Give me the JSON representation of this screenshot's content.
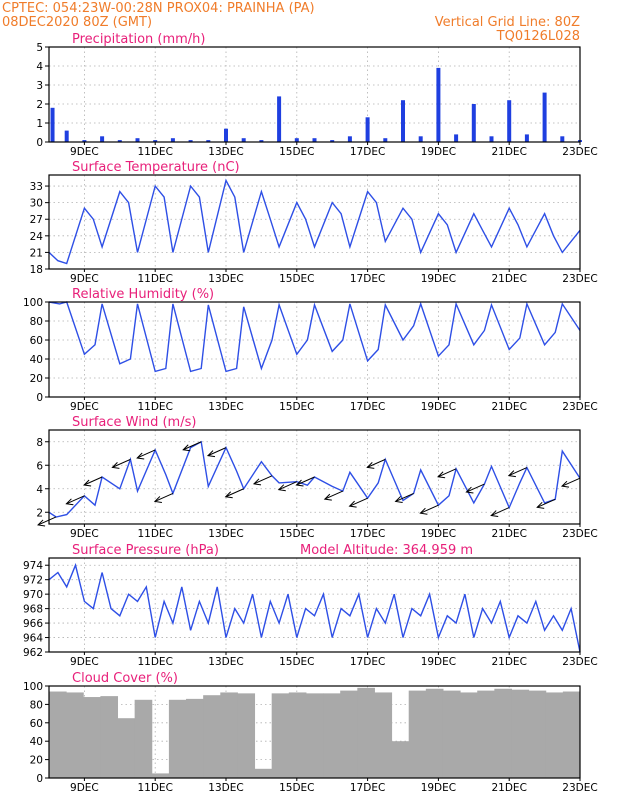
{
  "header": {
    "left1": "CPTEC:    054:23W-00:28N   PROX04: PRAINHA (PA)",
    "left2": "08DEC2020 80Z (GMT)",
    "right1": "Vertical Grid Line: 80Z",
    "right2": "TQ0126L028"
  },
  "colors": {
    "header": "#f07c2a",
    "title": "#e8207a",
    "series": "#2e4fe6",
    "bars": "#1f3fe0",
    "cloud": "#a9a9a9"
  },
  "x_axis": {
    "ticks": [
      "9DEC",
      "11DEC",
      "13DEC",
      "15DEC",
      "17DEC",
      "19DEC",
      "21DEC",
      "23DEC"
    ]
  },
  "panels": [
    {
      "id": "precip",
      "title": "Precipitation (mm/h)",
      "yticks": [
        "0",
        "1",
        "2",
        "3",
        "4",
        "5"
      ]
    },
    {
      "id": "temp",
      "title": "Surface Temperature (nC)",
      "yticks": [
        "18",
        "21",
        "24",
        "27",
        "30",
        "33"
      ]
    },
    {
      "id": "rh",
      "title": "Relative Humidity (%)",
      "yticks": [
        "0",
        "20",
        "40",
        "60",
        "80",
        "100"
      ]
    },
    {
      "id": "wind",
      "title": "Surface Wind (m/s)",
      "yticks": [
        "2",
        "4",
        "6",
        "8"
      ]
    },
    {
      "id": "pres",
      "title": "Surface Pressure (hPa)",
      "extra": "Model Altitude: 364.959 m",
      "yticks": [
        "962",
        "964",
        "966",
        "968",
        "970",
        "972",
        "974"
      ]
    },
    {
      "id": "cloud",
      "title": "Cloud Cover (%)",
      "yticks": [
        "0",
        "20",
        "40",
        "60",
        "80",
        "100"
      ]
    }
  ],
  "chart_data": [
    {
      "type": "bar",
      "title": "Precipitation (mm/h)",
      "ylim": [
        0,
        5
      ],
      "x": [
        "8.1",
        "8.5",
        "9.0",
        "9.5",
        "10.0",
        "10.5",
        "11.0",
        "11.5",
        "12.0",
        "12.5",
        "13.0",
        "13.5",
        "14.0",
        "14.5",
        "15.0",
        "15.5",
        "16.0",
        "16.5",
        "17.0",
        "17.5",
        "18.0",
        "18.5",
        "19.0",
        "19.5",
        "20.0",
        "20.5",
        "21.0",
        "21.5",
        "22.0",
        "22.5",
        "23.0"
      ],
      "values": [
        1.8,
        0.6,
        0.1,
        0.3,
        0.1,
        0.2,
        0.1,
        0.2,
        0.1,
        0.1,
        0.7,
        0.2,
        0.1,
        2.4,
        0.2,
        0.2,
        0.1,
        0.3,
        1.3,
        0.2,
        2.2,
        0.3,
        3.9,
        0.4,
        2.0,
        0.3,
        2.2,
        0.4,
        2.6,
        0.3,
        0.1
      ]
    },
    {
      "type": "line",
      "title": "Surface Temperature (nC)",
      "ylim": [
        18,
        35
      ],
      "x": [
        8.0,
        8.25,
        8.5,
        9.0,
        9.25,
        9.5,
        10.0,
        10.25,
        10.5,
        11.0,
        11.25,
        11.5,
        12.0,
        12.25,
        12.5,
        13.0,
        13.25,
        13.5,
        14.0,
        14.25,
        14.5,
        15.0,
        15.25,
        15.5,
        16.0,
        16.25,
        16.5,
        17.0,
        17.25,
        17.5,
        18.0,
        18.25,
        18.5,
        19.0,
        19.25,
        19.5,
        20.0,
        20.25,
        20.5,
        21.0,
        21.25,
        21.5,
        22.0,
        22.25,
        22.5,
        23.0
      ],
      "values": [
        21,
        19.5,
        19,
        29,
        27,
        22,
        32,
        30,
        21,
        33,
        31,
        21,
        33,
        31,
        21,
        34,
        31,
        21,
        32,
        27,
        22,
        30,
        27,
        22,
        30,
        28,
        22,
        32,
        30,
        23,
        29,
        27,
        21,
        28,
        26,
        21,
        28,
        25,
        22,
        29,
        26,
        22,
        28,
        24,
        21,
        25
      ]
    },
    {
      "type": "line",
      "title": "Relative Humidity (%)",
      "ylim": [
        0,
        100
      ],
      "x": [
        8.0,
        8.3,
        8.5,
        9.0,
        9.3,
        9.5,
        10.0,
        10.3,
        10.5,
        11.0,
        11.3,
        11.5,
        12.0,
        12.3,
        12.5,
        13.0,
        13.3,
        13.5,
        14.0,
        14.3,
        14.5,
        15.0,
        15.3,
        15.5,
        16.0,
        16.3,
        16.5,
        17.0,
        17.3,
        17.5,
        18.0,
        18.3,
        18.5,
        19.0,
        19.3,
        19.5,
        20.0,
        20.3,
        20.5,
        21.0,
        21.3,
        21.5,
        22.0,
        22.3,
        22.5,
        23.0
      ],
      "values": [
        100,
        98,
        100,
        45,
        55,
        98,
        35,
        40,
        98,
        27,
        30,
        98,
        27,
        30,
        97,
        27,
        30,
        95,
        30,
        60,
        97,
        45,
        60,
        97,
        48,
        60,
        98,
        38,
        50,
        97,
        60,
        75,
        98,
        43,
        55,
        98,
        55,
        70,
        97,
        50,
        62,
        98,
        55,
        68,
        98,
        70
      ]
    },
    {
      "type": "line",
      "title": "Surface Wind (m/s)",
      "ylim": [
        1,
        9
      ],
      "x": [
        8.0,
        8.2,
        8.5,
        9.0,
        9.3,
        9.5,
        10.0,
        10.3,
        10.5,
        11.0,
        11.3,
        11.5,
        12.0,
        12.3,
        12.5,
        13.0,
        13.3,
        13.5,
        14.0,
        14.3,
        14.5,
        15.0,
        15.3,
        15.5,
        16.0,
        16.3,
        16.5,
        17.0,
        17.3,
        17.5,
        18.0,
        18.3,
        18.5,
        19.0,
        19.3,
        19.5,
        20.0,
        20.3,
        20.5,
        21.0,
        21.3,
        21.5,
        22.0,
        22.3,
        22.5,
        23.0
      ],
      "values": [
        2.0,
        1.6,
        1.8,
        3.4,
        2.6,
        5.0,
        4.0,
        6.5,
        3.8,
        7.3,
        5.2,
        3.6,
        7.5,
        8.0,
        4.2,
        7.5,
        5.5,
        4.0,
        6.3,
        5.1,
        4.5,
        4.6,
        4.3,
        5.0,
        4.2,
        3.8,
        5.4,
        3.2,
        4.5,
        6.5,
        3.0,
        3.6,
        5.6,
        2.6,
        3.4,
        5.7,
        2.8,
        4.4,
        5.9,
        2.4,
        4.5,
        5.8,
        2.8,
        3.1,
        7.2,
        4.9
      ]
    },
    {
      "type": "line",
      "title": "Surface Pressure (hPa)",
      "ylim": [
        962,
        975
      ],
      "x": [
        8.0,
        8.25,
        8.5,
        8.75,
        9.0,
        9.25,
        9.5,
        9.75,
        10.0,
        10.25,
        10.5,
        10.75,
        11.0,
        11.25,
        11.5,
        11.75,
        12.0,
        12.25,
        12.5,
        12.75,
        13.0,
        13.25,
        13.5,
        13.75,
        14.0,
        14.25,
        14.5,
        14.75,
        15.0,
        15.25,
        15.5,
        15.75,
        16.0,
        16.25,
        16.5,
        16.75,
        17.0,
        17.25,
        17.5,
        17.75,
        18.0,
        18.25,
        18.5,
        18.75,
        19.0,
        19.25,
        19.5,
        19.75,
        20.0,
        20.25,
        20.5,
        20.75,
        21.0,
        21.25,
        21.5,
        21.75,
        22.0,
        22.25,
        22.5,
        22.75,
        23.0
      ],
      "values": [
        972,
        973,
        971,
        974,
        969,
        968,
        973,
        968,
        967,
        970,
        969,
        971,
        964,
        969,
        966,
        971,
        965,
        969,
        966,
        971,
        964,
        968,
        966,
        970,
        964,
        969,
        966,
        970,
        964,
        968,
        967,
        970,
        964,
        968,
        967,
        970,
        964,
        968,
        966,
        970,
        964,
        968,
        967,
        970,
        964,
        967,
        966,
        970,
        964,
        968,
        966,
        969,
        964,
        967,
        966,
        969,
        965,
        967,
        965,
        968,
        962
      ]
    },
    {
      "type": "bar",
      "title": "Cloud Cover (%)",
      "ylim": [
        0,
        100
      ],
      "x": [
        "8.0",
        "8.5",
        "9.0",
        "9.5",
        "10.0",
        "10.5",
        "11.0",
        "11.5",
        "12.0",
        "12.5",
        "13.0",
        "13.5",
        "14.0",
        "14.5",
        "15.0",
        "15.5",
        "16.0",
        "16.5",
        "17.0",
        "17.5",
        "18.0",
        "18.5",
        "19.0",
        "19.5",
        "20.0",
        "20.5",
        "21.0",
        "21.5",
        "22.0",
        "22.5",
        "23.0"
      ],
      "values": [
        94,
        93,
        88,
        89,
        65,
        85,
        5,
        85,
        86,
        90,
        93,
        92,
        10,
        92,
        93,
        92,
        92,
        95,
        98,
        93,
        40,
        95,
        97,
        95,
        93,
        95,
        97,
        96,
        95,
        93,
        94
      ]
    }
  ]
}
